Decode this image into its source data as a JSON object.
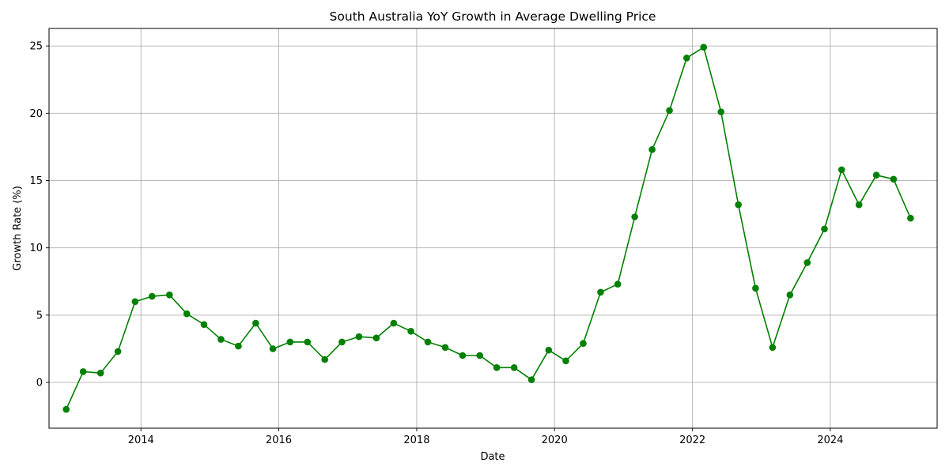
{
  "chart_data": {
    "type": "line",
    "title": "South Australia YoY Growth in Average Dwelling Price",
    "xlabel": "Date",
    "ylabel": "Growth Rate (%)",
    "xlim": [
      "2012-09-01",
      "2025-07-20"
    ],
    "ylim": [
      -3.4,
      26.3
    ],
    "grid": true,
    "line_color": "#008000",
    "marker": "circle",
    "x_ticks": [
      "2014",
      "2016",
      "2018",
      "2020",
      "2022",
      "2024"
    ],
    "y_ticks": [
      0,
      5,
      10,
      15,
      20,
      25
    ],
    "series": [
      {
        "x": [
          "2012-12-01",
          "2013-03-01",
          "2013-06-01",
          "2013-09-01",
          "2013-12-01",
          "2014-03-01",
          "2014-06-01",
          "2014-09-01",
          "2014-12-01",
          "2015-03-01",
          "2015-06-01",
          "2015-09-01",
          "2015-12-01",
          "2016-03-01",
          "2016-06-01",
          "2016-09-01",
          "2016-12-01",
          "2017-03-01",
          "2017-06-01",
          "2017-09-01",
          "2017-12-01",
          "2018-03-01",
          "2018-06-01",
          "2018-09-01",
          "2018-12-01",
          "2019-03-01",
          "2019-06-01",
          "2019-09-01",
          "2019-12-01",
          "2020-03-01",
          "2020-06-01",
          "2020-09-01",
          "2020-12-01",
          "2021-03-01",
          "2021-06-01",
          "2021-09-01",
          "2021-12-01",
          "2022-03-01",
          "2022-06-01",
          "2022-09-01",
          "2022-12-01",
          "2023-03-01",
          "2023-06-01",
          "2023-09-01",
          "2023-12-01",
          "2024-03-01",
          "2024-06-01",
          "2024-09-01",
          "2024-12-01",
          "2025-03-01"
        ],
        "values": [
          -2.0,
          0.8,
          0.7,
          2.3,
          6.0,
          6.4,
          6.5,
          5.1,
          4.3,
          3.2,
          2.7,
          4.4,
          2.5,
          3.0,
          3.0,
          1.7,
          3.0,
          3.4,
          3.3,
          4.4,
          3.8,
          3.0,
          2.6,
          2.0,
          2.0,
          1.1,
          1.1,
          0.2,
          2.4,
          1.6,
          2.9,
          6.7,
          7.3,
          12.3,
          17.3,
          20.2,
          24.1,
          24.9,
          20.1,
          13.2,
          7.0,
          2.6,
          6.5,
          8.9,
          11.4,
          15.8,
          13.2,
          15.4,
          15.1,
          12.2
        ]
      }
    ]
  }
}
